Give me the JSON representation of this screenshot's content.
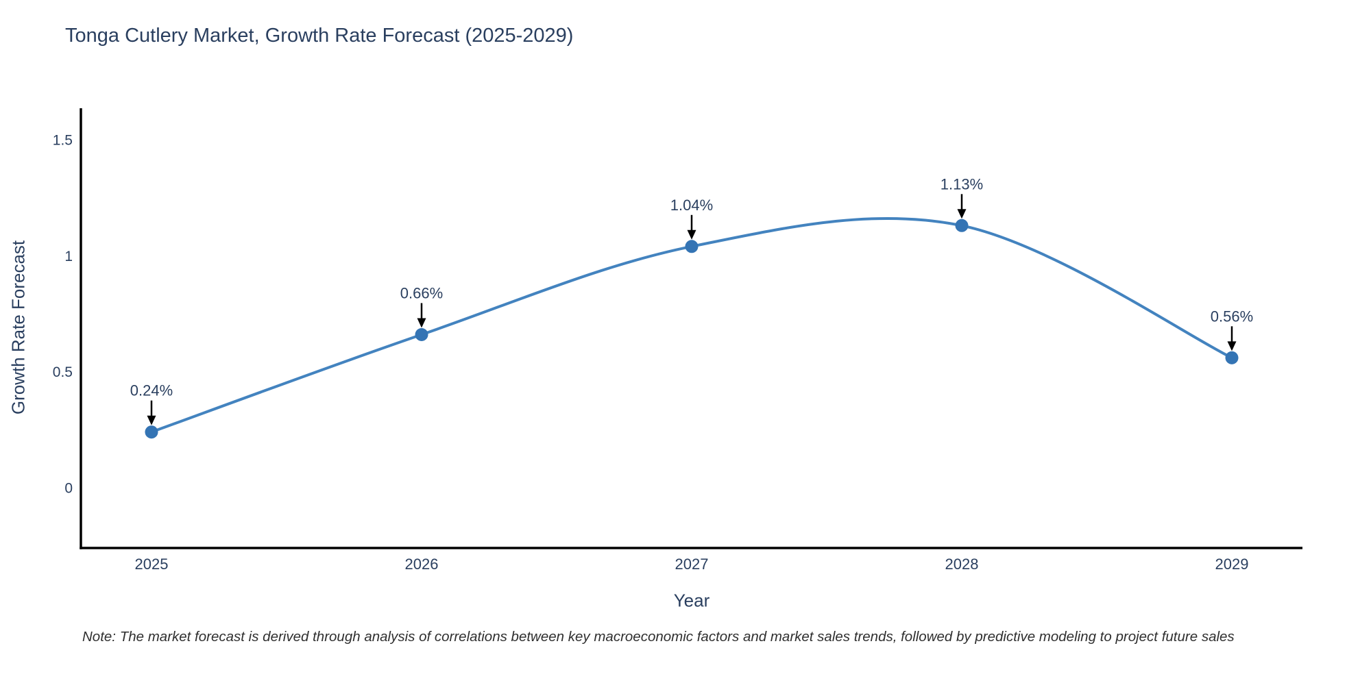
{
  "chart_data": {
    "type": "line",
    "title": "Tonga Cutlery Market, Growth Rate Forecast (2025-2029)",
    "xlabel": "Year",
    "ylabel": "Growth Rate Forecast",
    "categories": [
      "2025",
      "2026",
      "2027",
      "2028",
      "2029"
    ],
    "values": [
      0.24,
      0.66,
      1.04,
      1.13,
      0.56
    ],
    "point_labels": [
      "0.24%",
      "0.66%",
      "1.04%",
      "1.13%",
      "0.56%"
    ],
    "yticks": {
      "values": [
        0,
        0.5,
        1,
        1.5
      ],
      "labels": [
        "0",
        "0.5",
        "1",
        "1.5"
      ]
    },
    "ylim": [
      -0.26,
      1.63
    ],
    "line_shape": "spline",
    "grid": false,
    "legend_position": "none",
    "colors": {
      "line": "#4383bf",
      "marker": "#3474b4",
      "axis": "#000000",
      "tick_text": "#2a3f5f",
      "title_text": "#2a3f5f",
      "annotation_text": "#2a3f5f",
      "arrow": "#000000"
    }
  },
  "note": "Note: The market forecast is derived through analysis of correlations between key macroeconomic factors and market sales trends, followed by predictive modeling to project future sales"
}
